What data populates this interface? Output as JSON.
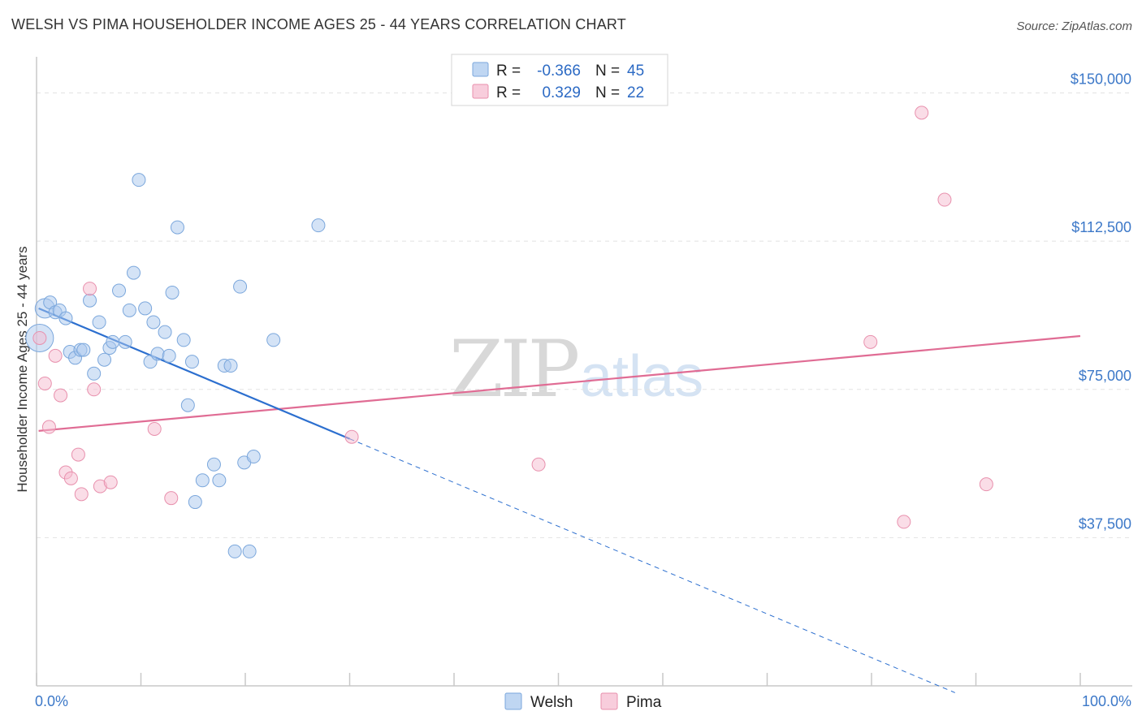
{
  "title": "WELSH VS PIMA HOUSEHOLDER INCOME AGES 25 - 44 YEARS CORRELATION CHART",
  "source": "Source: ZipAtlas.com",
  "watermark": {
    "zip": "ZIP",
    "atlas": "atlas"
  },
  "legend_top": {
    "rows": [
      {
        "r_label": "R = ",
        "r_value": "-0.366",
        "n_label": "N = ",
        "n_value": "45"
      },
      {
        "r_label": "R = ",
        "r_value": "0.329",
        "n_label": "N = ",
        "n_value": "22"
      }
    ]
  },
  "chart_data": {
    "type": "scatter",
    "title": "WELSH VS PIMA HOUSEHOLDER INCOME AGES 25 - 44 YEARS CORRELATION CHART",
    "xlabel": "",
    "ylabel": "Householder Income Ages 25 - 44 years",
    "xlim": [
      0,
      100
    ],
    "ylim": [
      0,
      157500
    ],
    "x_tick_labels": [
      "0.0%",
      "100.0%"
    ],
    "y_ticks": [
      37500,
      75000,
      112500,
      150000
    ],
    "y_tick_labels": [
      "$37,500",
      "$75,000",
      "$112,500",
      "$150,000"
    ],
    "grid": true,
    "legend_position": "bottom-center",
    "series": [
      {
        "name": "Welsh",
        "color": "#a9c8ee",
        "edge": "#7ba7dc",
        "trend_color": "#2c6fcf",
        "r": -0.366,
        "n": 45,
        "trend": {
          "x0": 0.2,
          "y0": 95500,
          "x1": 30.0,
          "y1": 62500,
          "x_dash_end": 88.0
        },
        "points": [
          [
            0.3,
            88000,
            3
          ],
          [
            0.8,
            95500,
            2
          ],
          [
            1.3,
            97000,
            1
          ],
          [
            1.8,
            94500,
            1
          ],
          [
            2.2,
            95000,
            1
          ],
          [
            2.8,
            93000,
            1
          ],
          [
            3.2,
            84500,
            1
          ],
          [
            3.7,
            83000,
            1
          ],
          [
            4.2,
            85000,
            1
          ],
          [
            4.5,
            85000,
            1
          ],
          [
            5.1,
            97500,
            1
          ],
          [
            5.5,
            79000,
            1
          ],
          [
            6.0,
            92000,
            1
          ],
          [
            6.5,
            82500,
            1
          ],
          [
            7.0,
            85500,
            1
          ],
          [
            7.3,
            87000,
            1
          ],
          [
            7.9,
            100000,
            1
          ],
          [
            8.5,
            87000,
            1
          ],
          [
            8.9,
            95000,
            1
          ],
          [
            9.3,
            104500,
            1
          ],
          [
            9.8,
            128000,
            1
          ],
          [
            10.4,
            95500,
            1
          ],
          [
            10.9,
            82000,
            1
          ],
          [
            11.2,
            92000,
            1
          ],
          [
            11.6,
            84000,
            1
          ],
          [
            12.3,
            89500,
            1
          ],
          [
            12.7,
            83500,
            1
          ],
          [
            13.0,
            99500,
            1
          ],
          [
            13.5,
            116000,
            1
          ],
          [
            14.1,
            87500,
            1
          ],
          [
            14.5,
            71000,
            1
          ],
          [
            14.9,
            82000,
            1
          ],
          [
            15.2,
            46500,
            1
          ],
          [
            15.9,
            52000,
            1
          ],
          [
            17.0,
            56000,
            1
          ],
          [
            17.5,
            52000,
            1
          ],
          [
            18.0,
            81000,
            1
          ],
          [
            18.6,
            81000,
            1
          ],
          [
            19.0,
            34000,
            1
          ],
          [
            19.5,
            101000,
            1
          ],
          [
            19.9,
            56500,
            1
          ],
          [
            20.4,
            34000,
            1
          ],
          [
            20.8,
            58000,
            1
          ],
          [
            22.7,
            87500,
            1
          ],
          [
            27.0,
            116500,
            1
          ]
        ]
      },
      {
        "name": "Pima",
        "color": "#f6bcd0",
        "edge": "#e890ad",
        "trend_color": "#e06c94",
        "r": 0.329,
        "n": 22,
        "trend": {
          "x0": 0.2,
          "y0": 64500,
          "x1": 100.0,
          "y1": 88500
        },
        "points": [
          [
            0.3,
            88000,
            1
          ],
          [
            0.8,
            76500,
            1
          ],
          [
            1.2,
            65500,
            1
          ],
          [
            1.8,
            83500,
            1
          ],
          [
            2.3,
            73500,
            1
          ],
          [
            2.8,
            54000,
            1
          ],
          [
            3.3,
            52500,
            1
          ],
          [
            4.0,
            58500,
            1
          ],
          [
            4.3,
            48500,
            1
          ],
          [
            5.1,
            100500,
            1
          ],
          [
            5.5,
            75000,
            1
          ],
          [
            6.1,
            50500,
            1
          ],
          [
            7.1,
            51500,
            1
          ],
          [
            11.3,
            65000,
            1
          ],
          [
            12.9,
            47500,
            1
          ],
          [
            30.2,
            63000,
            1
          ],
          [
            48.1,
            56000,
            1
          ],
          [
            79.9,
            87000,
            1
          ],
          [
            83.1,
            41500,
            1
          ],
          [
            84.8,
            145000,
            1
          ],
          [
            87.0,
            123000,
            1
          ],
          [
            91.0,
            51000,
            1
          ]
        ]
      }
    ]
  }
}
